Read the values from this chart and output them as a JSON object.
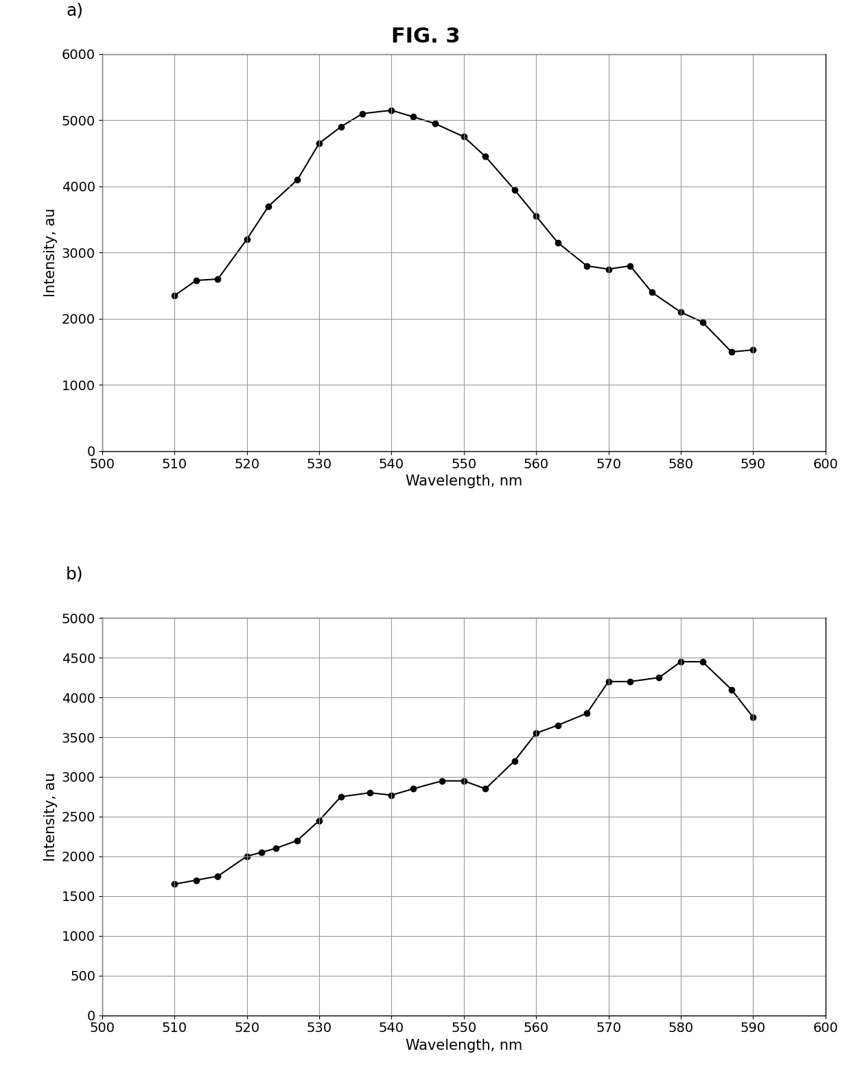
{
  "title": "FIG. 3",
  "subplot_a": {
    "label": "a)",
    "x": [
      510,
      513,
      516,
      520,
      523,
      527,
      530,
      533,
      536,
      540,
      543,
      546,
      550,
      553,
      557,
      560,
      563,
      567,
      570,
      573,
      576,
      580,
      583,
      587,
      590
    ],
    "y": [
      2350,
      2580,
      2600,
      3200,
      3700,
      4100,
      4650,
      4900,
      5100,
      5150,
      5050,
      4950,
      4750,
      4450,
      3950,
      3550,
      3150,
      2800,
      2750,
      2800,
      2400,
      2100,
      1950,
      1500,
      1530
    ],
    "xlabel": "Wavelength, nm",
    "ylabel": "Intensity, au",
    "xlim": [
      500,
      600
    ],
    "ylim": [
      0,
      6000
    ],
    "xticks": [
      500,
      510,
      520,
      530,
      540,
      550,
      560,
      570,
      580,
      590,
      600
    ],
    "yticks": [
      0,
      1000,
      2000,
      3000,
      4000,
      5000,
      6000
    ]
  },
  "subplot_b": {
    "label": "b)",
    "x": [
      510,
      513,
      516,
      520,
      522,
      524,
      527,
      530,
      533,
      537,
      540,
      543,
      547,
      550,
      553,
      557,
      560,
      563,
      567,
      570,
      573,
      577,
      580,
      583,
      587,
      590
    ],
    "y": [
      1650,
      1700,
      1750,
      2000,
      2050,
      2100,
      2200,
      2450,
      2750,
      2800,
      2770,
      2850,
      2950,
      2950,
      2850,
      3200,
      3550,
      3650,
      3800,
      4200,
      4200,
      4250,
      4450,
      4450,
      4100,
      3750
    ],
    "xlabel": "Wavelength, nm",
    "ylabel": "Intensity, au",
    "xlim": [
      500,
      600
    ],
    "ylim": [
      0,
      5000
    ],
    "xticks": [
      500,
      510,
      520,
      530,
      540,
      550,
      560,
      570,
      580,
      590,
      600
    ],
    "yticks": [
      0,
      500,
      1000,
      1500,
      2000,
      2500,
      3000,
      3500,
      4000,
      4500,
      5000
    ]
  },
  "line_color": "#000000",
  "marker": "o",
  "marker_size": 6,
  "line_width": 1.5,
  "background_color": "#ffffff",
  "grid_color": "#999999",
  "label_fontsize": 15,
  "tick_fontsize": 14,
  "title_fontsize": 22,
  "sublabel_fontsize": 18
}
